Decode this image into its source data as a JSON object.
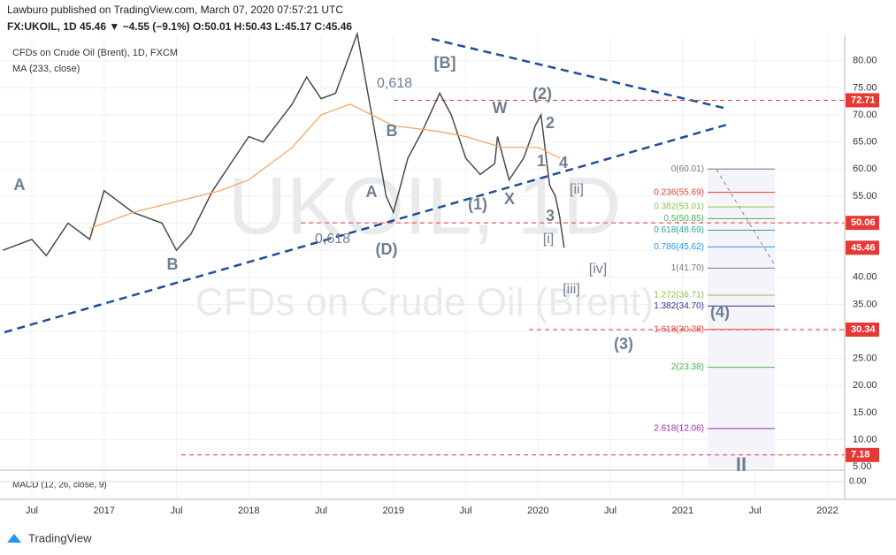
{
  "header": {
    "publisher": "Lawburo published on TradingView.com, March 07, 2020 07:57:21 UTC",
    "quote": "FX:UKOIL, 1D 45.46 ▼ −4.55 (−9.1%) O:50.01 H:50.43 L:45.17 C:45.46"
  },
  "chart_data": {
    "type": "line",
    "title": "CFDs on Crude Oil (Brent), 1D, FXCM",
    "watermark": "UKOIL, 1D",
    "watermark_sub": "CFDs on Crude Oil (Brent)",
    "xlim": [
      2016.28,
      2022.12
    ],
    "xticks": [
      {
        "value": 2016.5,
        "label": "Jul"
      },
      2017,
      {
        "value": 2017.5,
        "label": "Jul"
      },
      2018,
      {
        "value": 2018.5,
        "label": "Jul"
      },
      2019,
      {
        "value": 2019.5,
        "label": "Jul"
      },
      2020,
      {
        "value": 2020.5,
        "label": "Jul"
      },
      2021,
      {
        "value": 2021.5,
        "label": "Jul"
      },
      2022
    ],
    "ylim": [
      4.7,
      84.7
    ],
    "yticks": [
      {
        "value": 80,
        "label": "80.00"
      },
      {
        "value": 75,
        "label": "75.00"
      },
      {
        "value": 70,
        "label": "70.00"
      },
      {
        "value": 65,
        "label": "65.00"
      },
      {
        "value": 60,
        "label": "60.00"
      },
      {
        "value": 55,
        "label": "55.00"
      },
      {
        "value": 50,
        "label": "50.00"
      },
      {
        "value": 45,
        "label": "45.00"
      },
      {
        "value": 40,
        "label": "40.00"
      },
      {
        "value": 35,
        "label": "35.00"
      },
      {
        "value": 30,
        "label": "30.00"
      },
      {
        "value": 25,
        "label": "25.00"
      },
      {
        "value": 20,
        "label": "20.00"
      },
      {
        "value": 15,
        "label": "15.00"
      },
      {
        "value": 10,
        "label": "10.00"
      },
      {
        "value": 5,
        "label": "5.00"
      }
    ],
    "grid": true,
    "series": [
      {
        "name": "Price",
        "color": "#4a4a4a",
        "x": [
          2016.3,
          2016.5,
          2016.6,
          2016.75,
          2016.9,
          2017.0,
          2017.2,
          2017.4,
          2017.5,
          2017.6,
          2017.75,
          2017.9,
          2018.0,
          2018.1,
          2018.3,
          2018.4,
          2018.5,
          2018.6,
          2018.75,
          2018.85,
          2018.95,
          2019.0,
          2019.1,
          2019.2,
          2019.32,
          2019.4,
          2019.5,
          2019.6,
          2019.7,
          2019.72,
          2019.8,
          2019.9,
          2019.98,
          2020.02,
          2020.08,
          2020.12,
          2020.15,
          2020.18
        ],
        "values": [
          45,
          47,
          44,
          50,
          47,
          56,
          52,
          50,
          45,
          48,
          56,
          62,
          66,
          65,
          72,
          77,
          73,
          74,
          85,
          70,
          55,
          52,
          62,
          67,
          74,
          70,
          62,
          59,
          61,
          66,
          58,
          62,
          68,
          70,
          57,
          55,
          51,
          45.46
        ]
      },
      {
        "name": "MA (233, close)",
        "color": "#f5a15a",
        "x": [
          2016.9,
          2017.2,
          2017.5,
          2017.8,
          2018.0,
          2018.3,
          2018.5,
          2018.7,
          2019.0,
          2019.3,
          2019.5,
          2019.75,
          2020.0,
          2020.15
        ],
        "values": [
          49,
          52,
          54,
          56,
          58,
          64,
          70,
          72,
          68,
          67,
          66,
          64,
          64,
          62
        ]
      }
    ],
    "price_lines": [
      72.71,
      50.06,
      45.46,
      30.34,
      7.18
    ],
    "fib_levels": [
      {
        "label": "0(60.01)",
        "value": 60.01,
        "color": "#787878"
      },
      {
        "label": "0.236(55.69)",
        "value": 55.69,
        "color": "#e53935"
      },
      {
        "label": "0.382(53.01)",
        "value": 53.01,
        "color": "#8bc34a"
      },
      {
        "label": "0.5(50.85)",
        "value": 50.85,
        "color": "#4caf50"
      },
      {
        "label": "0.618(48.69)",
        "value": 48.69,
        "color": "#26a69a"
      },
      {
        "label": "0.786(45.62)",
        "value": 45.62,
        "color": "#2196f3"
      },
      {
        "label": "1(41.70)",
        "value": 41.7,
        "color": "#787878"
      },
      {
        "label": "1.272(36.71)",
        "value": 36.71,
        "color": "#8bc34a"
      },
      {
        "label": "1.382(34.70)",
        "value": 34.7,
        "color": "#283593"
      },
      {
        "label": "1.618(30.38)",
        "value": 30.38,
        "color": "#e53935"
      },
      {
        "label": "2(23.38)",
        "value": 23.38,
        "color": "#4caf50"
      },
      {
        "label": "2.618(12.06)",
        "value": 12.06,
        "color": "#9c27b0"
      }
    ],
    "annotations": [
      "A",
      "B",
      "A",
      "B",
      "0,618",
      "[B]",
      "0,618",
      "(D)",
      "W",
      "(2)",
      "2",
      "1",
      "4",
      "[ii]",
      "(1)",
      "X",
      "3",
      "[i]",
      "[iv]",
      "[iii]",
      "(4)",
      "(3)",
      "II"
    ],
    "macd_label": "MACD (12, 26, close, 9)",
    "macd_yticks": [
      {
        "value": 0,
        "label": "0.00"
      }
    ]
  },
  "footer": {
    "brand": "TradingView"
  }
}
